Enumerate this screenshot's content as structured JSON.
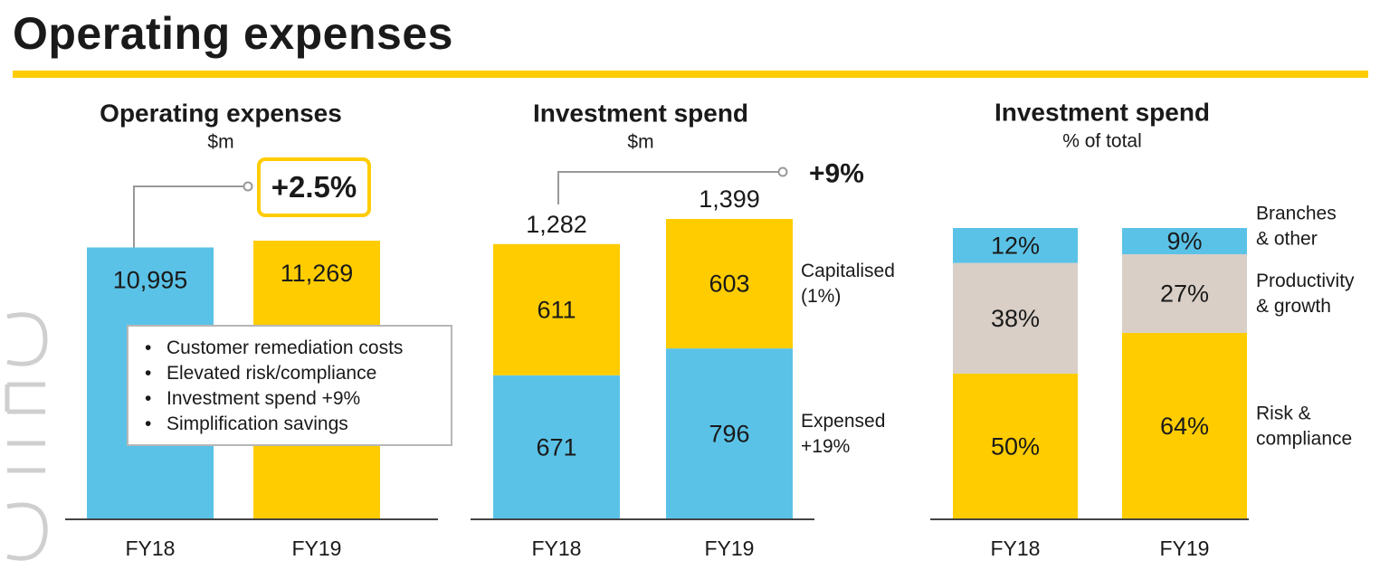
{
  "page": {
    "title": "Operating expenses",
    "accent_color": "#ffcc00",
    "blue_color": "#5bc2e7",
    "grey_color": "#d9cfc7"
  },
  "chart_data": [
    {
      "type": "bar",
      "title": "Operating expenses",
      "subtitle": "$m",
      "categories": [
        "FY18",
        "FY19"
      ],
      "values": [
        10995,
        11269
      ],
      "labels": [
        "10,995",
        "11,269"
      ],
      "colors": [
        "#5bc2e7",
        "#ffcc00"
      ],
      "growth_label": "+2.5%",
      "callout": [
        "Customer remediation costs",
        "Elevated risk/compliance",
        "Investment spend +9%",
        "Simplification savings"
      ]
    },
    {
      "type": "bar",
      "stacked": true,
      "title": "Investment spend",
      "subtitle": "$m",
      "categories": [
        "FY18",
        "FY19"
      ],
      "totals": [
        1282,
        1399
      ],
      "total_labels": [
        "1,282",
        "1,399"
      ],
      "growth_label": "+9%",
      "series": [
        {
          "name": "Expensed",
          "legend": [
            "Expensed",
            "+19%"
          ],
          "color": "#5bc2e7",
          "values": [
            671,
            796
          ]
        },
        {
          "name": "Capitalised",
          "legend": [
            "Capitalised",
            "(1%)"
          ],
          "color": "#ffcc00",
          "values": [
            611,
            603
          ]
        }
      ]
    },
    {
      "type": "bar",
      "stacked": true,
      "title": "Investment spend",
      "subtitle": "% of total",
      "categories": [
        "FY18",
        "FY19"
      ],
      "unit": "%",
      "series": [
        {
          "name": "Risk & compliance",
          "legend": [
            "Risk &",
            "compliance"
          ],
          "color": "#ffcc00",
          "values": [
            50,
            64
          ]
        },
        {
          "name": "Productivity & growth",
          "legend": [
            "Productivity",
            "& growth"
          ],
          "color": "#d9cfc7",
          "values": [
            38,
            27
          ]
        },
        {
          "name": "Branches & other",
          "legend": [
            "Branches",
            "& other"
          ],
          "color": "#5bc2e7",
          "values": [
            12,
            9
          ]
        }
      ]
    }
  ]
}
